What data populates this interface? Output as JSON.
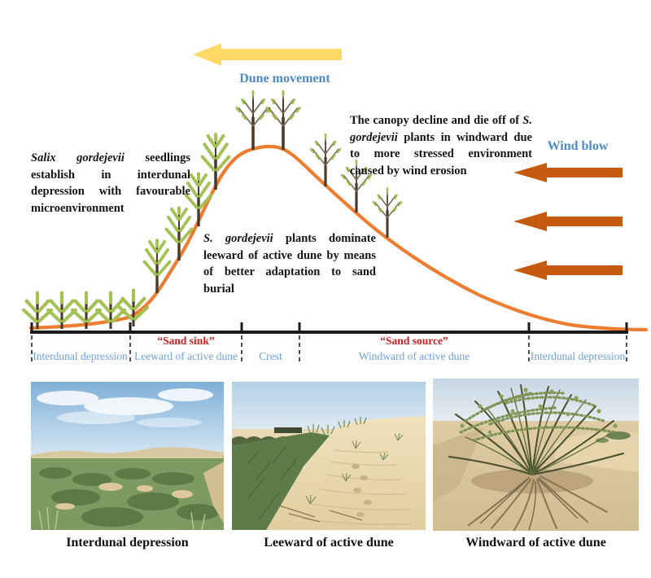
{
  "figure": {
    "dune_movement_label": "Dune movement",
    "wind_blow_label": "Wind blow",
    "annotation_left": [
      {
        "t": "Salix gordejevii",
        "i": true
      },
      {
        "t": " seedlings establish in interdunal depression with favourable microenvironment",
        "i": false
      }
    ],
    "annotation_mid": [
      {
        "t": "S. gordejevii",
        "i": true
      },
      {
        "t": " plants dominate leeward of active dune by means of better adaptation to sand burial",
        "i": false
      }
    ],
    "annotation_right": [
      {
        "t": "The canopy decline and die off of ",
        "i": false
      },
      {
        "t": "S. gordejevii",
        "i": true
      },
      {
        "t": " plants in windward due to more stressed environment caused by wind erosion",
        "i": false
      }
    ],
    "zones": [
      {
        "label": "Interdunal depression",
        "tag": ""
      },
      {
        "label": "Leeward of active dune",
        "tag": "“Sand sink”"
      },
      {
        "label": "Crest",
        "tag": ""
      },
      {
        "label": "Windward of active dune",
        "tag": "“Sand source”"
      },
      {
        "label": "Interdunal depression",
        "tag": ""
      }
    ],
    "colors": {
      "dune_curve": "#ED7D31",
      "dune_movement_arrow": "#FFD966",
      "wind_arrow": "#C65A11",
      "heading_blue": "#4D8BC9",
      "zone_label_blue": "#6FA0D8",
      "tag_red": "#CF2121",
      "axis_black": "#1A1A1A",
      "foliage_green": "#A3C155",
      "trunk_brown": "#4B3A2A"
    }
  },
  "photos": [
    {
      "caption": "Interdunal depression"
    },
    {
      "caption": "Leeward of active dune"
    },
    {
      "caption": "Windward of active dune"
    }
  ]
}
